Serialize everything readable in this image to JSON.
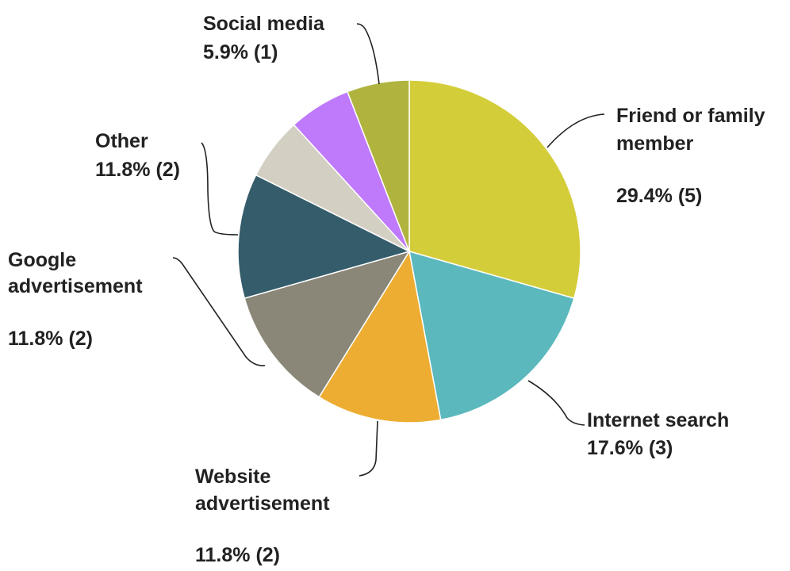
{
  "chart_data": {
    "type": "pie",
    "title": "",
    "slices": [
      {
        "label": "Friend or family member",
        "label_lines": [
          "Friend or family",
          "member"
        ],
        "value": 5,
        "percent_label": "29.4% (5)",
        "color": "#d4cd3a"
      },
      {
        "label": "Internet search",
        "label_lines": [
          "Internet search"
        ],
        "value": 3,
        "percent_label": "17.6% (3)",
        "color": "#5bb8bd"
      },
      {
        "label": "Website advertisement",
        "label_lines": [
          "Website",
          "advertisement"
        ],
        "value": 2,
        "percent_label": "11.8% (2)",
        "color": "#edad33"
      },
      {
        "label": "Google advertisement",
        "label_lines": [
          "Google",
          "advertisement"
        ],
        "value": 2,
        "percent_label": "11.8% (2)",
        "color": "#8a8778"
      },
      {
        "label": "Other",
        "label_lines": [
          "Other"
        ],
        "value": 2,
        "percent_label": "11.8% (2)",
        "color": "#345c6b"
      },
      {
        "label": "",
        "label_lines": [],
        "value": 1,
        "percent_label": "",
        "color": "#d3cfc3"
      },
      {
        "label": "",
        "label_lines": [],
        "value": 1,
        "percent_label": "",
        "color": "#bf7afb"
      },
      {
        "label": "Social media",
        "label_lines": [
          "Social media"
        ],
        "value": 1,
        "percent_label": "5.9% (1)",
        "color": "#b0b43f"
      }
    ],
    "legend": "none",
    "start_angle_deg": 0,
    "direction": "clockwise"
  }
}
